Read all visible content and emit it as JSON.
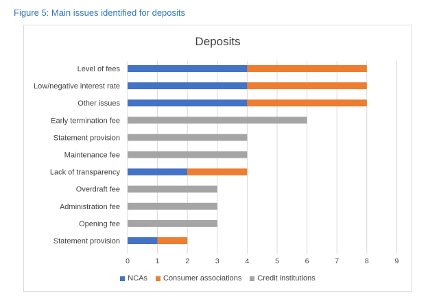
{
  "figure_caption": "Figure 5: Main issues identified for deposits",
  "chart_data": {
    "type": "bar",
    "orientation": "horizontal",
    "stacked": true,
    "title": "Deposits",
    "xlabel": "",
    "ylabel": "",
    "xlim": [
      0,
      9
    ],
    "xticks": [
      0,
      1,
      2,
      3,
      4,
      5,
      6,
      7,
      8,
      9
    ],
    "grid": "vertical",
    "legend_position": "bottom",
    "categories": [
      "Level of fees",
      "Low/negative interest rate",
      "Other issues",
      "Early termination fee",
      "Statement provision",
      "Maintenance fee",
      "Lack of transparency",
      "Overdraft fee",
      "Administration fee",
      "Opening fee",
      "Statement provision"
    ],
    "series": [
      {
        "name": "NCAs",
        "color": "#4472c4",
        "values": [
          4,
          4,
          4,
          0,
          0,
          0,
          2,
          0,
          0,
          0,
          1
        ]
      },
      {
        "name": "Consumer associations",
        "color": "#ed7d31",
        "values": [
          4,
          4,
          4,
          0,
          0,
          0,
          2,
          0,
          0,
          0,
          1
        ]
      },
      {
        "name": "Credit institutions",
        "color": "#a5a5a5",
        "values": [
          0,
          0,
          0,
          6,
          4,
          4,
          0,
          3,
          3,
          3,
          0
        ]
      }
    ]
  }
}
